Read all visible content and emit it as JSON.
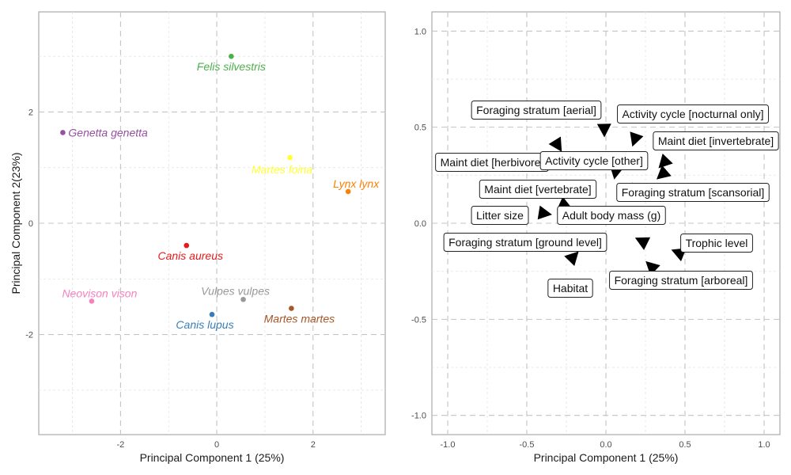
{
  "chart_data": [
    {
      "type": "scatter",
      "xlabel": "Principal Component 1 (25%)",
      "ylabel": "Principal Component 2(23%)",
      "xlim": [
        -3.7,
        3.5
      ],
      "ylim": [
        -3.8,
        3.8
      ],
      "x_ticks": [
        -2,
        0,
        2
      ],
      "y_ticks": [
        -2,
        0,
        2
      ],
      "grid": true,
      "points": [
        {
          "label": "Felis silvestris",
          "x": 0.3,
          "y": 3.0,
          "color": "#4daf4a"
        },
        {
          "label": "Genetta genetta",
          "x": -3.2,
          "y": 1.63,
          "color": "#984ea3"
        },
        {
          "label": "Martes foina",
          "x": 1.52,
          "y": 1.18,
          "color": "#ffff33"
        },
        {
          "label": "Lynx lynx",
          "x": 2.73,
          "y": 0.57,
          "color": "#ff7f00"
        },
        {
          "label": "Canis aureus",
          "x": -0.63,
          "y": -0.4,
          "color": "#e41a1c"
        },
        {
          "label": "Neovison vison",
          "x": -2.6,
          "y": -1.4,
          "color": "#f781bf"
        },
        {
          "label": "Vulpes vulpes",
          "x": 0.55,
          "y": -1.37,
          "color": "#999999"
        },
        {
          "label": "Martes martes",
          "x": 1.55,
          "y": -1.53,
          "color": "#a65628"
        },
        {
          "label": "Canis lupus",
          "x": -0.1,
          "y": -1.64,
          "color": "#377eb8"
        }
      ]
    },
    {
      "type": "scatter",
      "xlabel": "Principal Component 1 (25%)",
      "ylabel": "",
      "xlim": [
        -1.1,
        1.1
      ],
      "ylim": [
        -1.1,
        1.1
      ],
      "x_ticks": [
        -1.0,
        -0.5,
        0.0,
        0.5,
        1.0
      ],
      "y_ticks": [
        -1.0,
        -0.5,
        0.0,
        0.5,
        1.0
      ],
      "x_tick_labels": [
        "-1.0",
        "-0.5",
        "0.0",
        "0.5",
        "1.0"
      ],
      "y_tick_labels": [
        "-1.0",
        "-0.5",
        "0.0",
        "0.5",
        "1.0"
      ],
      "grid": true,
      "arrow_color": "#000000",
      "loadings": [
        {
          "label": "Foraging stratum [aerial]",
          "x": -0.01,
          "y": 0.48
        },
        {
          "label": "Activity cycle [nocturnal only]",
          "x": 0.18,
          "y": 0.43
        },
        {
          "label": "Maint diet [invertebrate]",
          "x": 0.36,
          "y": 0.31
        },
        {
          "label": "Maint diet [herbivore]",
          "x": -0.3,
          "y": 0.4
        },
        {
          "label": "Activity cycle [other]",
          "x": 0.06,
          "y": 0.26
        },
        {
          "label": "Maint diet [vertebrate]",
          "x": 0.35,
          "y": 0.25
        },
        {
          "label": "Foraging stratum [scansorial]",
          "x": 0.17,
          "y": 0.16
        },
        {
          "label": "Litter size",
          "x": -0.38,
          "y": 0.05
        },
        {
          "label": "Adult body mass (g)",
          "x": -0.25,
          "y": 0.09
        },
        {
          "label": "Foraging stratum [ground level]",
          "x": 0.22,
          "y": -0.09
        },
        {
          "label": "Trophic level",
          "x": 0.45,
          "y": -0.15
        },
        {
          "label": "Habitat",
          "x": -0.2,
          "y": -0.17
        },
        {
          "label": "Foraging stratum [arboreal]",
          "x": 0.28,
          "y": -0.22
        }
      ]
    }
  ]
}
